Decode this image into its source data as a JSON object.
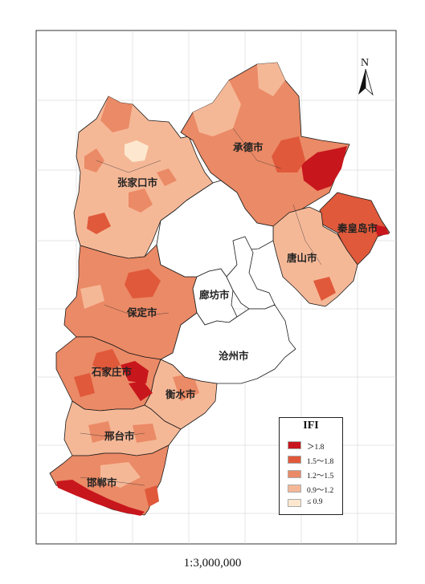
{
  "legend": {
    "title": "IFI",
    "classes": [
      {
        "label": "＞1.8",
        "color": "#c8161d"
      },
      {
        "label": "1.5～1.8",
        "color": "#e0593b"
      },
      {
        "label": "1.2～1.5",
        "color": "#eb8a66"
      },
      {
        "label": "0.9～1.2",
        "color": "#f5b897"
      },
      {
        "label": "≤ 0.9",
        "color": "#fde8cf"
      }
    ]
  },
  "cities": {
    "chengde": "承德市",
    "zhangjiakou": "张家口市",
    "qinhuangdao": "秦皇岛市",
    "tangshan": "唐山市",
    "langfang": "廊坊市",
    "baoding": "保定市",
    "cangzhou": "沧州市",
    "shijiazhuang": "石家庄市",
    "hengshui": "衡水市",
    "xingtai": "邢台市",
    "handan": "邯郸市"
  },
  "north_arrow": "N",
  "scale": "1:3,000,000",
  "colors": {
    "frame": "#333333",
    "border": "#1a1a1a",
    "no_data": "#ffffff"
  }
}
